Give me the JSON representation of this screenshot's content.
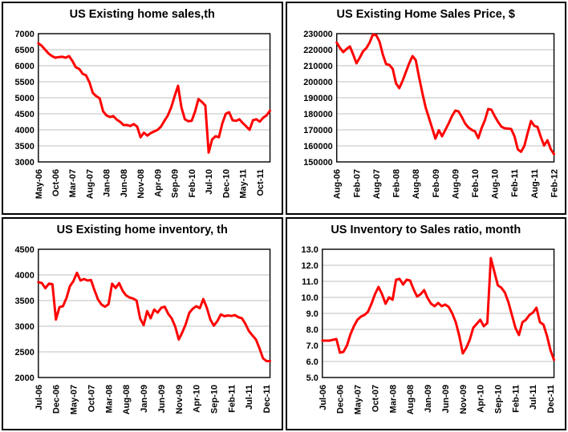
{
  "page": {
    "background": "#ffffff",
    "border_color": "#000000",
    "grid_color": "#bfbfbf",
    "axis_color": "#000000",
    "accent_red": "#ff0000"
  },
  "chart_data": [
    {
      "id": "existing-home-sales",
      "type": "line",
      "title": "US Existing home sales,th",
      "series_color": "#ff0000",
      "grid": true,
      "legend": "none",
      "x_range": [
        "May-06",
        "Jan-12"
      ],
      "x_tick_every": 5,
      "x_tick_labels": [
        "May-06",
        "Oct-06",
        "Mar-07",
        "Aug-07",
        "Jan-08",
        "Jun-08",
        "Nov-08",
        "Apr-09",
        "Sep-09",
        "Feb-10",
        "Jul-10",
        "Dec-10",
        "May-11",
        "Oct-11"
      ],
      "y_min": 3000,
      "y_max": 7000,
      "y_tick_labels": [
        "7000",
        "6500",
        "6000",
        "5500",
        "5000",
        "4500",
        "4000",
        "3500",
        "3000"
      ],
      "values": [
        6700,
        6620,
        6500,
        6380,
        6300,
        6250,
        6270,
        6280,
        6250,
        6300,
        6150,
        5950,
        5900,
        5750,
        5700,
        5480,
        5150,
        5050,
        4980,
        4580,
        4450,
        4400,
        4430,
        4320,
        4250,
        4150,
        4150,
        4120,
        4180,
        4100,
        3770,
        3910,
        3820,
        3900,
        3950,
        4000,
        4100,
        4280,
        4450,
        4700,
        5050,
        5375,
        4700,
        4330,
        4270,
        4280,
        4570,
        4960,
        4870,
        4760,
        3290,
        3700,
        3800,
        3770,
        4200,
        4500,
        4550,
        4300,
        4280,
        4330,
        4210,
        4110,
        4000,
        4300,
        4330,
        4255,
        4380,
        4450,
        4600
      ]
    },
    {
      "id": "existing-home-sales-price",
      "type": "line",
      "title": "US Existing Home Sales Price, $",
      "series_color": "#ff0000",
      "grid": true,
      "legend": "none",
      "x_range": [
        "Aug-06",
        "Feb-12"
      ],
      "x_tick_every": 6,
      "x_tick_labels": [
        "Aug-06",
        "Feb-07",
        "Aug-07",
        "Feb-08",
        "Aug-08",
        "Feb-09",
        "Aug-09",
        "Feb-10",
        "Aug-10",
        "Feb-11",
        "Aug-11",
        "Feb-12"
      ],
      "y_min": 150000,
      "y_max": 230000,
      "y_tick_labels": [
        "230000",
        "220000",
        "210000",
        "200000",
        "190000",
        "180000",
        "170000",
        "160000",
        "150000"
      ],
      "values": [
        224500,
        221000,
        218500,
        220500,
        222000,
        217000,
        211500,
        215000,
        219000,
        221000,
        224500,
        229500,
        229000,
        225000,
        217000,
        211000,
        210500,
        208000,
        199000,
        196000,
        200500,
        206000,
        211500,
        216000,
        213500,
        203000,
        193000,
        184000,
        177500,
        171000,
        164500,
        169800,
        166000,
        170000,
        174000,
        178500,
        182000,
        181500,
        178000,
        174000,
        171500,
        170000,
        169000,
        164800,
        171000,
        176000,
        183000,
        182500,
        178500,
        175000,
        172000,
        171000,
        170800,
        170500,
        166000,
        157800,
        156300,
        160000,
        168000,
        175500,
        172500,
        171800,
        165500,
        160200,
        163500,
        158000,
        154800
      ]
    },
    {
      "id": "existing-home-inventory",
      "type": "line",
      "title": "US Existing home inventory, th",
      "series_color": "#ff0000",
      "grid": true,
      "legend": "none",
      "x_range": [
        "Jul-06",
        "Jan-12"
      ],
      "x_tick_every": 5,
      "x_tick_labels": [
        "Jul-06",
        "Dec-06",
        "May-07",
        "Oct-07",
        "Mar-08",
        "Aug-08",
        "Jan-09",
        "Jun-09",
        "Nov-09",
        "Apr-10",
        "Sep-10",
        "Feb-11",
        "Jul-11",
        "Dec-11"
      ],
      "y_min": 2000,
      "y_max": 4500,
      "y_tick_labels": [
        "4500",
        "4000",
        "3500",
        "3000",
        "2500",
        "2000"
      ],
      "values": [
        3860,
        3840,
        3740,
        3830,
        3820,
        3130,
        3370,
        3390,
        3550,
        3780,
        3880,
        4040,
        3890,
        3920,
        3890,
        3900,
        3700,
        3520,
        3420,
        3380,
        3430,
        3830,
        3745,
        3840,
        3690,
        3600,
        3560,
        3540,
        3500,
        3150,
        3020,
        3295,
        3155,
        3325,
        3265,
        3360,
        3380,
        3240,
        3150,
        2990,
        2740,
        2880,
        3040,
        3260,
        3340,
        3390,
        3350,
        3530,
        3360,
        3130,
        3010,
        3100,
        3230,
        3195,
        3210,
        3200,
        3215,
        3175,
        3155,
        3045,
        2905,
        2820,
        2740,
        2570,
        2375,
        2320,
        2320
      ]
    },
    {
      "id": "inventory-to-sales-ratio",
      "type": "line",
      "title": "US Inventory to Sales ratio, month",
      "series_color": "#ff0000",
      "grid": true,
      "legend": "none",
      "x_range": [
        "Jul-06",
        "Jan-12"
      ],
      "x_tick_every": 5,
      "x_tick_labels": [
        "Jul-06",
        "Dec-06",
        "May-07",
        "Oct-07",
        "Mar-08",
        "Aug-08",
        "Jan-09",
        "Jun-09",
        "Nov-09",
        "Apr-10",
        "Sep-10",
        "Feb-11",
        "Jul-11",
        "Dec-11"
      ],
      "y_min": 5.0,
      "y_max": 13.0,
      "y_tick_labels": [
        "13.0",
        "12.0",
        "11.0",
        "10.0",
        "9.0",
        "8.0",
        "7.0",
        "6.0",
        "5.0"
      ],
      "values": [
        7.3,
        7.3,
        7.3,
        7.35,
        7.4,
        6.55,
        6.6,
        7.0,
        7.7,
        8.2,
        8.6,
        8.8,
        8.9,
        9.1,
        9.6,
        10.2,
        10.65,
        10.2,
        9.6,
        10.0,
        9.85,
        11.1,
        11.15,
        10.8,
        11.1,
        11.05,
        10.5,
        10.05,
        10.2,
        10.45,
        9.95,
        9.6,
        9.45,
        9.65,
        9.45,
        9.55,
        9.4,
        9.0,
        8.45,
        7.6,
        6.5,
        6.85,
        7.35,
        8.1,
        8.35,
        8.6,
        8.2,
        8.4,
        12.45,
        11.6,
        10.75,
        10.6,
        10.3,
        9.7,
        8.9,
        8.1,
        7.65,
        8.45,
        8.6,
        8.9,
        9.05,
        9.35,
        8.45,
        8.3,
        7.6,
        6.7,
        6.1
      ]
    }
  ]
}
